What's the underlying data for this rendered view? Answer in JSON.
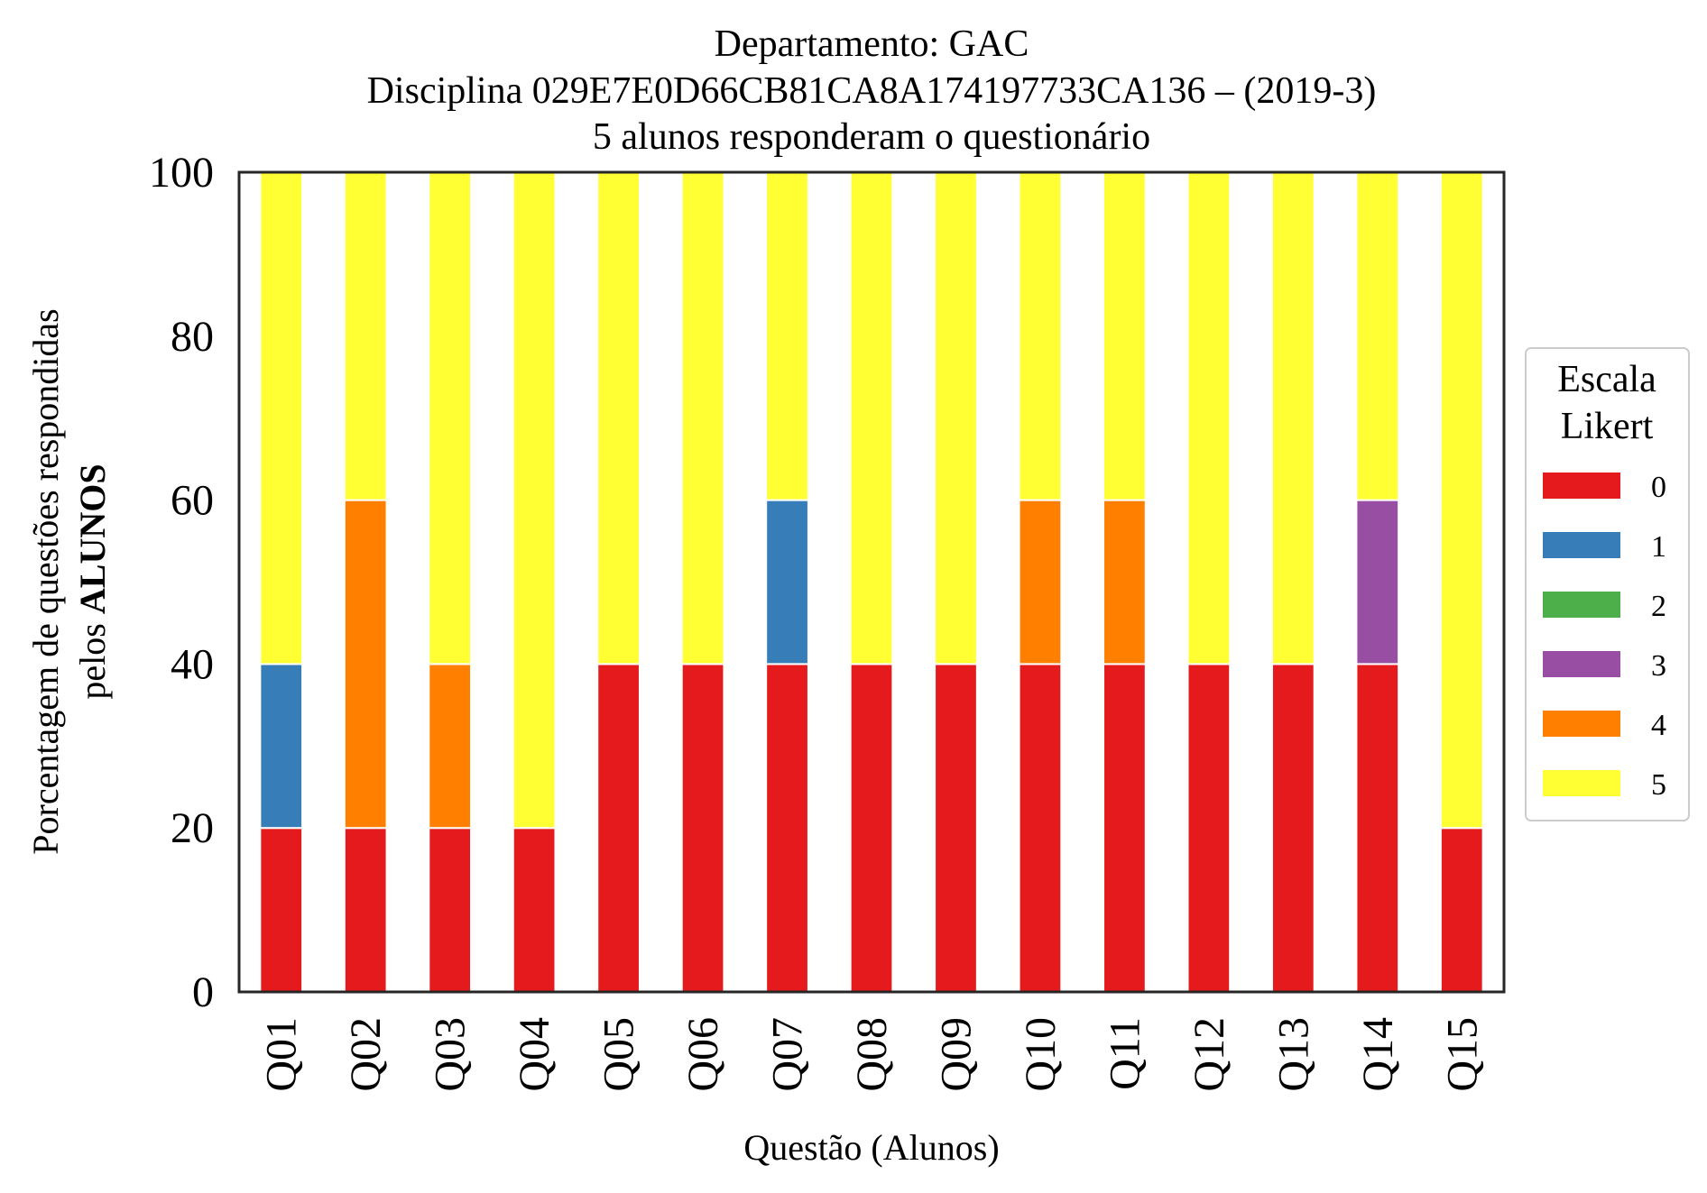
{
  "chart_data": {
    "type": "bar",
    "stacked": true,
    "title_lines": [
      "Departamento: GAC",
      "Disciplina 029E7E0D66CB81CA8A174197733CA136 – (2019-3)",
      "5 alunos responderam o questionário"
    ],
    "xlabel": "Questão (Alunos)",
    "ylabel_line1": "Porcentagem de questões respondidas",
    "ylabel_line2_prefix": "pelos ",
    "ylabel_line2_bold": "ALUNOS",
    "ylim": [
      0,
      100
    ],
    "yticks": [
      "0",
      "20",
      "40",
      "60",
      "80",
      "100"
    ],
    "grid": false,
    "legend_placement": "right",
    "legend_title_lines": [
      "Escala",
      "Likert"
    ],
    "categories": [
      "Q01",
      "Q02",
      "Q03",
      "Q04",
      "Q05",
      "Q06",
      "Q07",
      "Q08",
      "Q09",
      "Q10",
      "Q11",
      "Q12",
      "Q13",
      "Q14",
      "Q15"
    ],
    "series": [
      {
        "name": "0",
        "color": "#e41a1c",
        "values": [
          20,
          20,
          20,
          20,
          40,
          40,
          40,
          40,
          40,
          40,
          40,
          40,
          40,
          40,
          20
        ]
      },
      {
        "name": "1",
        "color": "#377eb8",
        "values": [
          20,
          0,
          0,
          0,
          0,
          0,
          20,
          0,
          0,
          0,
          0,
          0,
          0,
          0,
          0
        ]
      },
      {
        "name": "2",
        "color": "#4daf4a",
        "values": [
          0,
          0,
          0,
          0,
          0,
          0,
          0,
          0,
          0,
          0,
          0,
          0,
          0,
          0,
          0
        ]
      },
      {
        "name": "3",
        "color": "#984ea3",
        "values": [
          0,
          0,
          0,
          0,
          0,
          0,
          0,
          0,
          0,
          0,
          0,
          0,
          0,
          20,
          0
        ]
      },
      {
        "name": "4",
        "color": "#ff7f00",
        "values": [
          0,
          40,
          20,
          0,
          0,
          0,
          0,
          0,
          0,
          20,
          20,
          0,
          0,
          0,
          0
        ]
      },
      {
        "name": "5",
        "color": "#ffff33",
        "values": [
          60,
          40,
          60,
          80,
          60,
          60,
          40,
          60,
          60,
          40,
          40,
          60,
          60,
          40,
          80
        ]
      }
    ]
  }
}
